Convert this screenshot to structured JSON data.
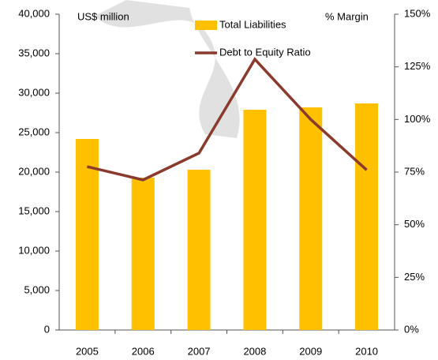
{
  "chart_data": {
    "type": "bar",
    "y_label": "US$ million",
    "y2_label": "% Margin",
    "categories": [
      "2005",
      "2006",
      "2007",
      "2008",
      "2009",
      "2010"
    ],
    "series": [
      {
        "name": "Total Liabilities",
        "type": "bar",
        "color": "#ffc000",
        "values": [
          24200,
          19300,
          20300,
          27900,
          28200,
          28700
        ]
      },
      {
        "name": "Debt to Equity Ratio",
        "type": "line",
        "axis": "y2",
        "color": "#8b3a2e",
        "values": [
          77.6,
          71.3,
          84,
          128.6,
          100,
          76
        ]
      }
    ],
    "ylim": [
      0,
      40000
    ],
    "yticks": [
      0,
      {
        "value": 5000,
        "label": "5,000"
      },
      {
        "value": 10000,
        "label": "10,000"
      },
      {
        "value": 15000,
        "label": "15,000"
      },
      {
        "value": 20000,
        "label": "20,000"
      },
      {
        "value": 25000,
        "label": "25,000"
      },
      {
        "value": 30000,
        "label": "30,000"
      },
      {
        "value": 35000,
        "label": "35,000"
      },
      {
        "value": 40000,
        "label": "40,000"
      }
    ],
    "y2lim": [
      0,
      150
    ],
    "y2ticks": [
      {
        "value": 0,
        "label": "0%"
      },
      {
        "value": 25,
        "label": "25%"
      },
      {
        "value": 50,
        "label": "50%"
      },
      {
        "value": 75,
        "label": "75%"
      },
      {
        "value": 100,
        "label": "100%"
      },
      {
        "value": 125,
        "label": "125%"
      },
      {
        "value": 150,
        "label": "150%"
      }
    ],
    "grid": false
  }
}
